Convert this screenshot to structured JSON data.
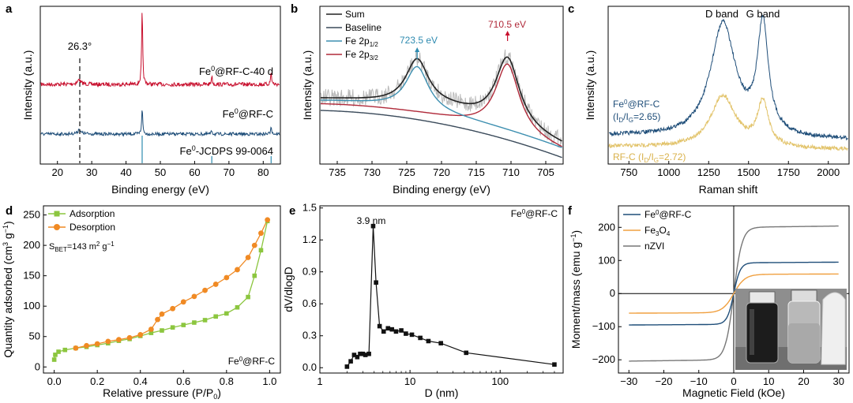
{
  "panels": [
    {
      "letter": "a",
      "xlabel": "Binding energy (eV)",
      "ylabel": "Intensity (a.u.)",
      "xticks": [
        "20",
        "30",
        "40",
        "50",
        "60",
        "70",
        "80"
      ],
      "annotations": [
        "26.3°"
      ],
      "series_labels": {
        "top": {
          "base": "Fe",
          "sup": "0",
          "rest": "@RF-C-40 d"
        },
        "mid": {
          "base": "Fe",
          "sup": "0",
          "rest": "@RF-C"
        },
        "ref": {
          "base": "Fe",
          "sup": "0",
          "rest": "-JCDPS 99-0064"
        }
      }
    },
    {
      "letter": "b",
      "xlabel": "Binding energy (eV)",
      "ylabel": "Intensity (a.u.)",
      "xticks": [
        "735",
        "730",
        "725",
        "720",
        "715",
        "710",
        "705"
      ],
      "legend": [
        {
          "label": "Sum"
        },
        {
          "label": "Baseline"
        },
        {
          "base": "Fe 2p",
          "sub": "1/2"
        },
        {
          "base": "Fe 2p",
          "sub": "3/2"
        }
      ],
      "peak_labels": [
        "723.5 eV",
        "710.5 eV"
      ]
    },
    {
      "letter": "c",
      "xlabel": "Raman shift",
      "ylabel": "Intensity (a.u.)",
      "xticks": [
        "750",
        "1000",
        "1250",
        "1500",
        "1750",
        "2000"
      ],
      "band_labels": [
        "D band",
        "G band"
      ],
      "labels": {
        "fe": {
          "l1_base": "Fe",
          "l1_sup": "0",
          "l1_rest": "@RF-C",
          "open": "(I",
          "s1": "D",
          "mid": "/I",
          "s2": "G",
          "val": "=2.65)"
        },
        "rf": {
          "base": "RF-C (I",
          "s1": "D",
          "mid": "/I",
          "s2": "G",
          "val": "=2.72)"
        }
      }
    },
    {
      "letter": "d",
      "xlabel": {
        "base": "Relative pressure (P/P",
        "sub": "0",
        "end": ")"
      },
      "ylabel": {
        "a": "Quantity adsorbed (cm",
        "sup1": "3",
        "b": " g",
        "sup2": "−1",
        "c": ")"
      },
      "xticks": [
        "0.0",
        "0.2",
        "0.4",
        "0.6",
        "0.8",
        "1.0"
      ],
      "yticks": [
        "0",
        "50",
        "100",
        "150",
        "200",
        "250"
      ],
      "legend": [
        "Adsorption",
        "Desorption"
      ],
      "sbet": {
        "a": "S",
        "sub": "BET",
        "b": "=143 m",
        "sup1": "2",
        "c": " g",
        "sup2": "−1"
      },
      "sample": {
        "base": "Fe",
        "sup": "0",
        "rest": "@RF-C"
      }
    },
    {
      "letter": "e",
      "xlabel": "D (nm)",
      "ylabel": "dV/dlogD",
      "xticks": [
        "1",
        "10",
        "100"
      ],
      "yticks": [
        "0.0",
        "0.3",
        "0.6",
        "0.9",
        "1.2",
        "1.5"
      ],
      "peak_label": "3.9 nm",
      "sample": {
        "base": "Fe",
        "sup": "0",
        "rest": "@RF-C"
      }
    },
    {
      "letter": "f",
      "xlabel": "Magnetic Field (kOe)",
      "ylabel": {
        "a": "Moment/mass (emu g",
        "sup": "−1",
        "b": ")"
      },
      "xticks": [
        "−30",
        "−20",
        "−10",
        "0",
        "10",
        "20",
        "30"
      ],
      "yticks": [
        "−200",
        "−100",
        "0",
        "100",
        "200"
      ],
      "legend": [
        {
          "base": "Fe",
          "sup": "0",
          "rest": "@RF-C"
        },
        {
          "base": "Fe",
          "sub": "3",
          "rest": "O",
          "sub2": "4"
        },
        {
          "base": "nZVI"
        }
      ]
    }
  ],
  "colors": {
    "red": "#c8102e",
    "navy": "#1f4e79",
    "teal": "#2e8bb0",
    "gray_raw": "#b9b9b9",
    "sum": "#222222",
    "baseline": "#3a4a5a",
    "fe12": "#3d8fb0",
    "fe32": "#b02a3a",
    "raman_fe": "#1f4e79",
    "raman_rf": "#e2c36a",
    "ads": "#8cc63f",
    "des": "#f08a24",
    "psd": "#111111",
    "mag_fe": "#1f4e79",
    "mag_fe3o4": "#f0a040",
    "mag_nzvi": "#777777"
  },
  "chart_data": [
    {
      "type": "line",
      "title": "a",
      "xlabel": "Binding energy (eV)",
      "ylabel": "Intensity (a.u.)",
      "xlim": [
        15,
        85
      ],
      "series": [
        {
          "name": "Fe0@RF-C-40 d",
          "peaks": [
            {
              "x": 26.3,
              "height": 0.5
            },
            {
              "x": 44.7,
              "height": 8.5
            },
            {
              "x": 65.0,
              "height": 1.0
            },
            {
              "x": 82.3,
              "height": 1.4
            }
          ]
        },
        {
          "name": "Fe0@RF-C",
          "peaks": [
            {
              "x": 26.3,
              "height": 0.45
            },
            {
              "x": 44.7,
              "height": 3.0
            },
            {
              "x": 65.0,
              "height": 0.4
            },
            {
              "x": 82.3,
              "height": 1.0
            }
          ]
        },
        {
          "name": "Fe0-JCDPS 99-0064",
          "sticks": [
            44.7,
            65.0,
            82.3
          ]
        }
      ],
      "annotation": {
        "x": 26.3,
        "label": "26.3°"
      }
    },
    {
      "type": "line",
      "title": "b",
      "xlabel": "Binding energy (eV)",
      "ylabel": "Intensity (a.u.)",
      "xlim": [
        737.5,
        702.5
      ],
      "series": [
        {
          "name": "Sum",
          "peaks": [
            {
              "x": 723.5
            },
            {
              "x": 710.5
            }
          ]
        },
        {
          "name": "Baseline"
        },
        {
          "name": "Fe 2p1/2",
          "peak_x": 723.5
        },
        {
          "name": "Fe 2p3/2",
          "peak_x": 710.5
        }
      ]
    },
    {
      "type": "line",
      "title": "c",
      "xlabel": "Raman shift",
      "ylabel": "Intensity (a.u.)",
      "xlim": [
        620,
        2130
      ],
      "series": [
        {
          "name": "Fe0@RF-C",
          "ID_IG": 2.65,
          "D_band": 1340,
          "G_band": 1590
        },
        {
          "name": "RF-C",
          "ID_IG": 2.72,
          "D_band": 1340,
          "G_band": 1590
        }
      ]
    },
    {
      "type": "line",
      "title": "d",
      "xlabel": "Relative pressure (P/P0)",
      "ylabel": "Quantity adsorbed (cm3 g-1)",
      "xlim": [
        -0.05,
        1.05
      ],
      "ylim": [
        -10,
        265
      ],
      "series": [
        {
          "name": "Adsorption",
          "x": [
            0.0,
            0.005,
            0.02,
            0.05,
            0.1,
            0.15,
            0.2,
            0.25,
            0.3,
            0.35,
            0.4,
            0.45,
            0.5,
            0.55,
            0.6,
            0.65,
            0.7,
            0.75,
            0.8,
            0.85,
            0.9,
            0.93,
            0.96,
            0.99
          ],
          "y": [
            12,
            20,
            25,
            28,
            31,
            33,
            36,
            39,
            43,
            46,
            51,
            56,
            60,
            65,
            69,
            73,
            77,
            83,
            88,
            98,
            115,
            150,
            192,
            240
          ]
        },
        {
          "name": "Desorption",
          "x": [
            0.99,
            0.96,
            0.93,
            0.9,
            0.85,
            0.8,
            0.75,
            0.7,
            0.65,
            0.6,
            0.55,
            0.5,
            0.48,
            0.45,
            0.4,
            0.35,
            0.3,
            0.25,
            0.2,
            0.15,
            0.1
          ],
          "y": [
            242,
            220,
            200,
            180,
            160,
            147,
            136,
            126,
            116,
            107,
            96,
            87,
            78,
            62,
            53,
            48,
            45,
            42,
            38,
            35,
            31
          ]
        }
      ],
      "annotation": "SBET=143 m2 g-1"
    },
    {
      "type": "line",
      "title": "e",
      "xlabel": "D (nm)",
      "ylabel": "dV/dlogD",
      "xscale": "log",
      "xlim": [
        1,
        500
      ],
      "ylim": [
        -0.05,
        1.52
      ],
      "series": [
        {
          "name": "Fe0@RF-C",
          "x": [
            2.0,
            2.2,
            2.4,
            2.6,
            2.8,
            3.0,
            3.2,
            3.5,
            3.9,
            4.2,
            4.6,
            5.1,
            5.7,
            6.3,
            7.0,
            8.0,
            9.0,
            10.5,
            13.0,
            16.0,
            22.0,
            42.0,
            400.0
          ],
          "y": [
            0.01,
            0.06,
            0.12,
            0.1,
            0.13,
            0.13,
            0.12,
            0.13,
            1.33,
            0.8,
            0.39,
            0.34,
            0.37,
            0.36,
            0.34,
            0.35,
            0.32,
            0.31,
            0.28,
            0.25,
            0.23,
            0.14,
            0.03
          ]
        }
      ],
      "annotation": "3.9 nm"
    },
    {
      "type": "line",
      "title": "f",
      "xlabel": "Magnetic Field (kOe)",
      "ylabel": "Moment/mass (emu g-1)",
      "xlim": [
        -33,
        33
      ],
      "ylim": [
        -240,
        265
      ],
      "series": [
        {
          "name": "Fe0@RF-C",
          "saturation": 93
        },
        {
          "name": "Fe3O4",
          "saturation": 58
        },
        {
          "name": "nZVI",
          "saturation": 200
        }
      ]
    }
  ]
}
